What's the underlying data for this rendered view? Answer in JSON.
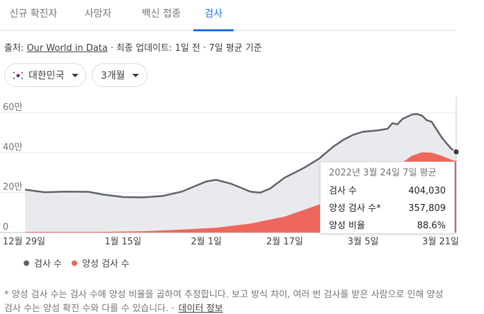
{
  "tabs": [
    {
      "label": "신규 확진자"
    },
    {
      "label": "사망자"
    },
    {
      "label": "백신 접종"
    },
    {
      "label": "검사",
      "active": true
    }
  ],
  "source": {
    "prefix": "출처:",
    "link": "Our World in Data",
    "suffix": "· 최종 업데이트: 1일 전 · 7일 평균 기준"
  },
  "filters": {
    "country": "대한민국",
    "range": "3개월"
  },
  "tooltip": {
    "date": "2022년 3월 24일 7일 평균",
    "rows": [
      {
        "label": "검사 수",
        "value": "404,030"
      },
      {
        "label": "양성 검사 수*",
        "value": "357,809"
      },
      {
        "label": "양성 비율",
        "value": "88.6%"
      }
    ]
  },
  "legend": {
    "tests": "검사 수",
    "positive": "양성 검사 수"
  },
  "footnote": {
    "text": "* 양성 검사 수는 검사 수에 양성 비율을 곱하여 추정합니다. 보고 방식 차이, 여러 번 검사를 받은 사람으로 인해 양성 검사 수는 양성 확진 수와 다를 수 있습니다. ·",
    "link": "데이터 정보"
  },
  "colors": {
    "tests_line": "#5f6368",
    "tests_fill": "#e8eaed",
    "positive_fill": "#ee675c",
    "accent": "#1a73e8"
  },
  "chart_data": {
    "type": "area",
    "x_tick_labels": [
      "12월 29일",
      "1월 15일",
      "2월 1일",
      "2월 17일",
      "3월 5일",
      "3월 21일"
    ],
    "y_tick_labels": [
      "0",
      "20만",
      "40만",
      "60만"
    ],
    "ylim": [
      0,
      600000
    ],
    "x_start": "2021-12-26",
    "x_end": "2022-03-24",
    "series": [
      {
        "name": "검사 수",
        "points": [
          [
            "2021-12-26",
            215000
          ],
          [
            "2021-12-30",
            202000
          ],
          [
            "2022-01-03",
            205000
          ],
          [
            "2022-01-08",
            204000
          ],
          [
            "2022-01-11",
            190000
          ],
          [
            "2022-01-15",
            178000
          ],
          [
            "2022-01-19",
            176000
          ],
          [
            "2022-01-23",
            183000
          ],
          [
            "2022-01-27",
            205000
          ],
          [
            "2022-02-01",
            256000
          ],
          [
            "2022-02-03",
            264000
          ],
          [
            "2022-02-06",
            245000
          ],
          [
            "2022-02-08",
            225000
          ],
          [
            "2022-02-10",
            205000
          ],
          [
            "2022-02-12",
            200000
          ],
          [
            "2022-02-14",
            220000
          ],
          [
            "2022-02-17",
            275000
          ],
          [
            "2022-02-19",
            300000
          ],
          [
            "2022-02-21",
            325000
          ],
          [
            "2022-02-24",
            370000
          ],
          [
            "2022-02-27",
            432000
          ],
          [
            "2022-03-01",
            465000
          ],
          [
            "2022-03-03",
            490000
          ],
          [
            "2022-03-05",
            505000
          ],
          [
            "2022-03-08",
            512000
          ],
          [
            "2022-03-10",
            520000
          ],
          [
            "2022-03-11",
            548000
          ],
          [
            "2022-03-12",
            542000
          ],
          [
            "2022-03-13",
            568000
          ],
          [
            "2022-03-15",
            592000
          ],
          [
            "2022-03-16",
            594000
          ],
          [
            "2022-03-17",
            586000
          ],
          [
            "2022-03-18",
            563000
          ],
          [
            "2022-03-19",
            555000
          ],
          [
            "2022-03-21",
            478000
          ],
          [
            "2022-03-22",
            448000
          ],
          [
            "2022-03-23",
            420000
          ],
          [
            "2022-03-24",
            404030
          ]
        ]
      },
      {
        "name": "양성 검사 수",
        "points": [
          [
            "2021-12-26",
            3000
          ],
          [
            "2022-01-10",
            3000
          ],
          [
            "2022-01-20",
            7000
          ],
          [
            "2022-01-27",
            15000
          ],
          [
            "2022-02-03",
            24000
          ],
          [
            "2022-02-10",
            45000
          ],
          [
            "2022-02-17",
            80000
          ],
          [
            "2022-02-24",
            140000
          ],
          [
            "2022-03-01",
            205000
          ],
          [
            "2022-03-05",
            255000
          ],
          [
            "2022-03-10",
            300000
          ],
          [
            "2022-03-15",
            385000
          ],
          [
            "2022-03-17",
            402000
          ],
          [
            "2022-03-19",
            400000
          ],
          [
            "2022-03-21",
            385000
          ],
          [
            "2022-03-23",
            365000
          ],
          [
            "2022-03-24",
            357809
          ]
        ]
      }
    ],
    "tooltip_point": [
      "2022-03-24",
      404030
    ],
    "grid": true
  }
}
